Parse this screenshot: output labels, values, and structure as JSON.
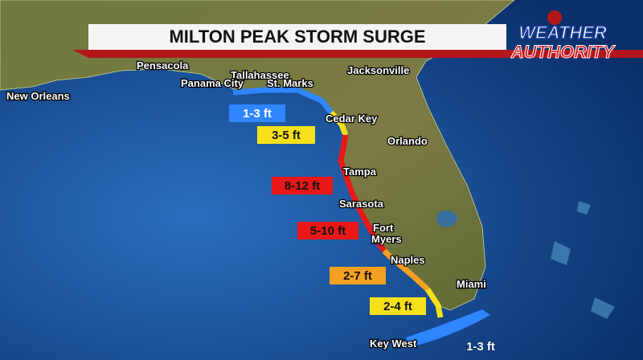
{
  "header": {
    "title": "MILTON PEAK STORM SURGE"
  },
  "logo": {
    "top": "WEATHER",
    "bottom": "AUTHORITY"
  },
  "cities": [
    "Pensacola",
    "Tallahassee",
    "Panama City",
    "St. Marks",
    "Jacksonville",
    "New Orleans",
    "Cedar Key",
    "Orlando",
    "Tampa",
    "Sarasota",
    "Fort",
    "Myers",
    "Naples",
    "Miami",
    "Key West"
  ],
  "surge_zones": [
    "1-3 ft",
    "3-5 ft",
    "8-12 ft",
    "5-10 ft",
    "2-7 ft",
    "2-4 ft",
    "1-3 ft"
  ]
}
